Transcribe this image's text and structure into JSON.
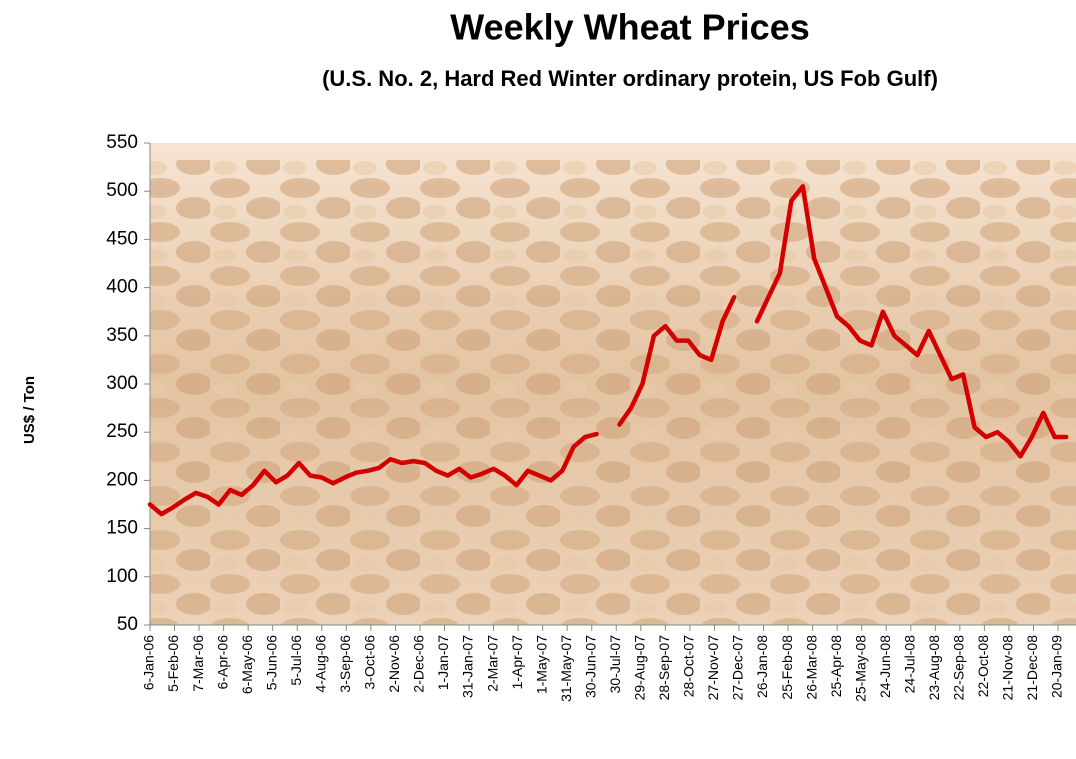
{
  "chart_data": {
    "type": "line",
    "title": "Weekly Wheat Prices",
    "subtitle": "(U.S.  No. 2, Hard Red Winter ordinary protein, US Fob Gulf)",
    "y_label": "US$ / Ton",
    "color": "#d40000",
    "x": [
      "2006-01-06",
      "2006-01-20",
      "2006-02-03",
      "2006-02-17",
      "2006-03-03",
      "2006-03-17",
      "2006-03-31",
      "2006-04-14",
      "2006-04-28",
      "2006-05-12",
      "2006-05-26",
      "2006-06-09",
      "2006-06-23",
      "2006-07-07",
      "2006-07-21",
      "2006-08-04",
      "2006-08-18",
      "2006-09-01",
      "2006-09-15",
      "2006-09-29",
      "2006-10-13",
      "2006-10-27",
      "2006-11-10",
      "2006-11-24",
      "2006-12-08",
      "2006-12-22",
      "2007-01-05",
      "2007-01-19",
      "2007-02-02",
      "2007-02-16",
      "2007-03-02",
      "2007-03-16",
      "2007-03-30",
      "2007-04-13",
      "2007-04-27",
      "2007-05-11",
      "2007-05-25",
      "2007-06-08",
      "2007-06-22",
      "2007-07-06",
      "2007-07-20",
      "2007-08-03",
      "2007-08-17",
      "2007-08-31",
      "2007-09-14",
      "2007-09-28",
      "2007-10-12",
      "2007-10-26",
      "2007-11-09",
      "2007-11-23",
      "2007-12-07",
      "2007-12-21",
      "2008-01-04",
      "2008-01-18",
      "2008-02-01",
      "2008-02-15",
      "2008-02-29",
      "2008-03-14",
      "2008-03-28",
      "2008-04-11",
      "2008-04-25",
      "2008-05-09",
      "2008-05-23",
      "2008-06-06",
      "2008-06-20",
      "2008-07-04",
      "2008-07-18",
      "2008-08-01",
      "2008-08-15",
      "2008-08-29",
      "2008-09-12",
      "2008-09-26",
      "2008-10-10",
      "2008-10-24",
      "2008-11-07",
      "2008-11-21",
      "2008-12-05",
      "2008-12-19",
      "2009-01-02",
      "2009-01-16",
      "2009-01-30"
    ],
    "values": [
      175,
      165,
      172,
      180,
      187,
      183,
      175,
      190,
      185,
      195,
      210,
      198,
      205,
      218,
      205,
      203,
      197,
      203,
      208,
      210,
      213,
      222,
      218,
      220,
      218,
      210,
      205,
      212,
      203,
      207,
      212,
      205,
      195,
      210,
      205,
      200,
      210,
      235,
      245,
      248,
      null,
      258,
      275,
      300,
      350,
      360,
      345,
      345,
      330,
      325,
      365,
      390,
      null,
      365,
      390,
      415,
      490,
      505,
      430,
      400,
      370,
      360,
      345,
      340,
      375,
      350,
      340,
      330,
      355,
      330,
      305,
      310,
      255,
      245,
      250,
      240,
      225,
      245,
      270,
      245,
      245
    ],
    "xlim": [
      "2006-01-06",
      "2009-02-11"
    ],
    "xticks": [
      {
        "value": "2006-01-06",
        "label": "6-Jan-06"
      },
      {
        "value": "2006-02-05",
        "label": "5-Feb-06"
      },
      {
        "value": "2006-03-07",
        "label": "7-Mar-06"
      },
      {
        "value": "2006-04-06",
        "label": "6-Apr-06"
      },
      {
        "value": "2006-05-06",
        "label": "6-May-06"
      },
      {
        "value": "2006-06-05",
        "label": "5-Jun-06"
      },
      {
        "value": "2006-07-05",
        "label": "5-Jul-06"
      },
      {
        "value": "2006-08-04",
        "label": "4-Aug-06"
      },
      {
        "value": "2006-09-03",
        "label": "3-Sep-06"
      },
      {
        "value": "2006-10-03",
        "label": "3-Oct-06"
      },
      {
        "value": "2006-11-02",
        "label": "2-Nov-06"
      },
      {
        "value": "2006-12-02",
        "label": "2-Dec-06"
      },
      {
        "value": "2007-01-01",
        "label": "1-Jan-07"
      },
      {
        "value": "2007-01-31",
        "label": "31-Jan-07"
      },
      {
        "value": "2007-03-02",
        "label": "2-Mar-07"
      },
      {
        "value": "2007-04-01",
        "label": "1-Apr-07"
      },
      {
        "value": "2007-05-01",
        "label": "1-May-07"
      },
      {
        "value": "2007-05-31",
        "label": "31-May-07"
      },
      {
        "value": "2007-06-30",
        "label": "30-Jun-07"
      },
      {
        "value": "2007-07-30",
        "label": "30-Jul-07"
      },
      {
        "value": "2007-08-29",
        "label": "29-Aug-07"
      },
      {
        "value": "2007-09-28",
        "label": "28-Sep-07"
      },
      {
        "value": "2007-10-28",
        "label": "28-Oct-07"
      },
      {
        "value": "2007-11-27",
        "label": "27-Nov-07"
      },
      {
        "value": "2007-12-27",
        "label": "27-Dec-07"
      },
      {
        "value": "2008-01-26",
        "label": "26-Jan-08"
      },
      {
        "value": "2008-02-25",
        "label": "25-Feb-08"
      },
      {
        "value": "2008-03-26",
        "label": "26-Mar-08"
      },
      {
        "value": "2008-04-25",
        "label": "25-Apr-08"
      },
      {
        "value": "2008-05-25",
        "label": "25-May-08"
      },
      {
        "value": "2008-06-24",
        "label": "24-Jun-08"
      },
      {
        "value": "2008-07-24",
        "label": "24-Jul-08"
      },
      {
        "value": "2008-08-23",
        "label": "23-Aug-08"
      },
      {
        "value": "2008-09-22",
        "label": "22-Sep-08"
      },
      {
        "value": "2008-10-22",
        "label": "22-Oct-08"
      },
      {
        "value": "2008-11-21",
        "label": "21-Nov-08"
      },
      {
        "value": "2008-12-21",
        "label": "21-Dec-08"
      },
      {
        "value": "2009-01-20",
        "label": "20-Jan-09"
      }
    ],
    "ylim": [
      50,
      550
    ],
    "yticks": [
      50,
      100,
      150,
      200,
      250,
      300,
      350,
      400,
      450,
      500,
      550
    ]
  }
}
